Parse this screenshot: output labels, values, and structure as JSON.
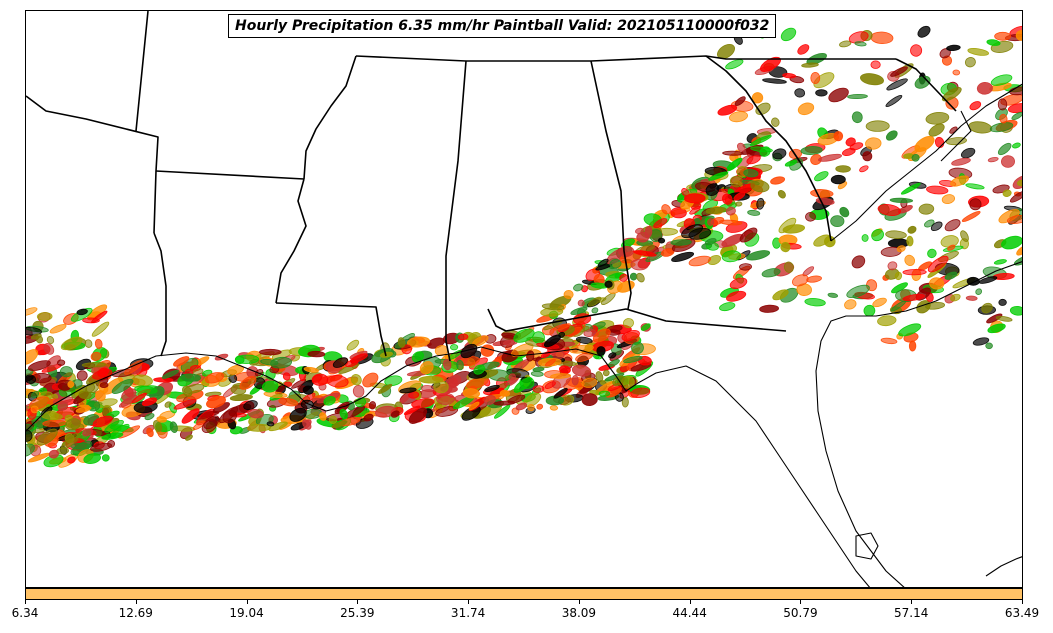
{
  "title": "Hourly Precipitation 6.35 mm/hr Paintball Valid: 202105110000f032",
  "colorbar": {
    "color": "#ffc266",
    "ticks": [
      "6.34",
      "12.69",
      "19.04",
      "25.39",
      "31.74",
      "38.09",
      "44.44",
      "50.79",
      "57.14",
      "63.49"
    ]
  },
  "member_colors": [
    "#ff0000",
    "#ff8c00",
    "#00cc00",
    "#808000",
    "#8b0000",
    "#000000",
    "#228b22",
    "#ff4500",
    "#a0a000",
    "#cc3333"
  ],
  "state_line_color": "#000000"
}
